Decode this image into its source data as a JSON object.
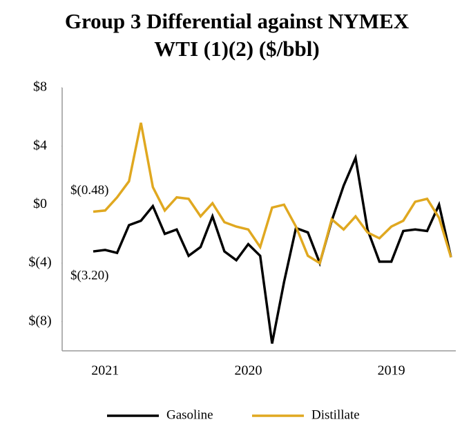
{
  "chart_data": {
    "type": "line",
    "title": [
      "Group 3 Differential against NYMEX",
      "WTI (1)(2) ($/bbl)"
    ],
    "categories": [
      null,
      "2021",
      null,
      null,
      null,
      null,
      null,
      null,
      null,
      null,
      null,
      null,
      null,
      "2020",
      null,
      null,
      null,
      null,
      null,
      null,
      null,
      null,
      null,
      null,
      null,
      "2019",
      null,
      null,
      null,
      null,
      null
    ],
    "series": [
      {
        "name": "Gasoline",
        "color": "#000000",
        "values": [
          -3.2,
          -3.1,
          -3.3,
          -1.4,
          -1.1,
          -0.1,
          -2.0,
          -1.7,
          -3.5,
          -2.9,
          -0.8,
          -3.2,
          -3.8,
          -2.7,
          -3.5,
          -9.5,
          -5.3,
          -1.6,
          -1.9,
          -4.0,
          -1.1,
          1.3,
          3.2,
          -1.7,
          -3.9,
          -3.9,
          -1.8,
          -1.7,
          -1.8,
          0.0,
          -3.6
        ],
        "value_labels": [
          "$(3.20)",
          null,
          null,
          null,
          null,
          null,
          null,
          null,
          null,
          null,
          null,
          null,
          null,
          null,
          null,
          null,
          null,
          null,
          null,
          null,
          null,
          null,
          null,
          null,
          null,
          null,
          null,
          null,
          null,
          null,
          null
        ]
      },
      {
        "name": "Distillate",
        "color": "#e0a820",
        "values": [
          -0.48,
          -0.4,
          0.5,
          1.6,
          5.6,
          1.2,
          -0.4,
          0.5,
          0.4,
          -0.8,
          0.1,
          -1.2,
          -1.5,
          -1.7,
          -2.9,
          -0.2,
          0.0,
          -1.5,
          -3.5,
          -4.0,
          -1.0,
          -1.7,
          -0.8,
          -1.9,
          -2.3,
          -1.5,
          -1.1,
          0.2,
          0.4,
          -0.9,
          -3.6
        ],
        "value_labels": [
          "$(0.48)",
          null,
          null,
          null,
          null,
          null,
          null,
          null,
          null,
          null,
          null,
          null,
          null,
          null,
          null,
          null,
          null,
          null,
          null,
          null,
          null,
          null,
          null,
          null,
          null,
          null,
          null,
          null,
          null,
          null,
          null
        ]
      }
    ],
    "ylim": [
      -10,
      8
    ],
    "yticks": [
      {
        "value": 8,
        "label": "$8"
      },
      {
        "value": 4,
        "label": "$4"
      },
      {
        "value": 0,
        "label": "$0"
      },
      {
        "value": -4,
        "label": "$(4)"
      },
      {
        "value": -8,
        "label": "$(8)"
      }
    ],
    "grid": false,
    "legend": "bottom"
  }
}
